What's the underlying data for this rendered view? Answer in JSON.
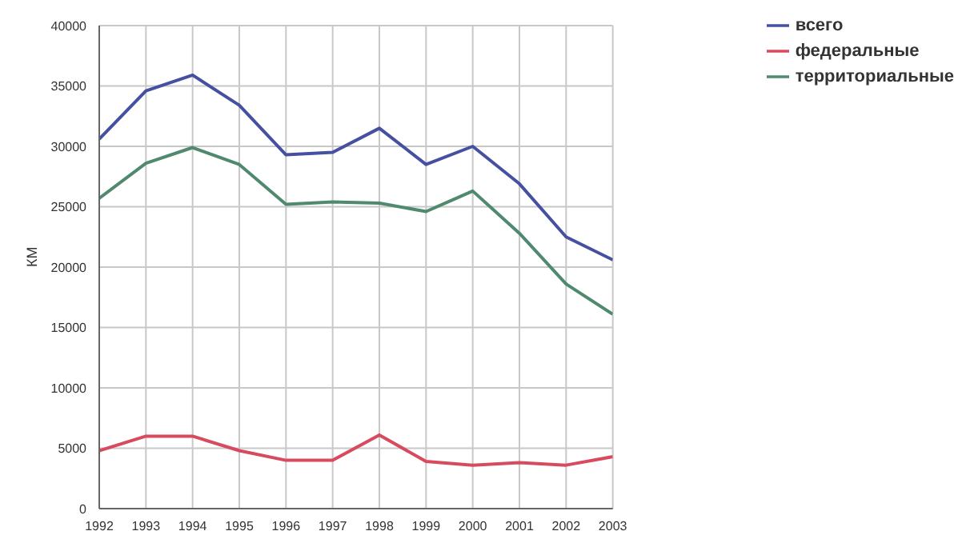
{
  "chart_data": {
    "type": "line",
    "ylabel": "КМ",
    "x": [
      1992,
      1993,
      1994,
      1995,
      1996,
      1997,
      1998,
      1999,
      2000,
      2001,
      2002,
      2003
    ],
    "xlim": [
      1992,
      2003
    ],
    "xticks": [
      1992,
      1993,
      1994,
      1995,
      1996,
      1997,
      1998,
      1999,
      2000,
      2001,
      2002,
      2003
    ],
    "ylim": [
      0,
      40000
    ],
    "yticks": [
      0,
      5000,
      10000,
      15000,
      20000,
      25000,
      30000,
      35000,
      40000
    ],
    "grid": true,
    "legend": "top right",
    "marker": "none",
    "line_style": "solid",
    "series": [
      {
        "name": "всего",
        "color": "#4650a0",
        "values": [
          30600,
          34600,
          35900,
          33400,
          29300,
          29500,
          31500,
          28500,
          30000,
          26900,
          22500,
          20600
        ]
      },
      {
        "name": "федеральные",
        "color": "#d84a5e",
        "values": [
          4800,
          6000,
          6000,
          4800,
          4000,
          4000,
          6100,
          3900,
          3600,
          3800,
          3600,
          4300
        ]
      },
      {
        "name": "территориальные",
        "color": "#4f8a6e",
        "values": [
          25700,
          28600,
          29900,
          28500,
          25200,
          25400,
          25300,
          24600,
          26300,
          22800,
          18600,
          16100
        ]
      }
    ]
  }
}
